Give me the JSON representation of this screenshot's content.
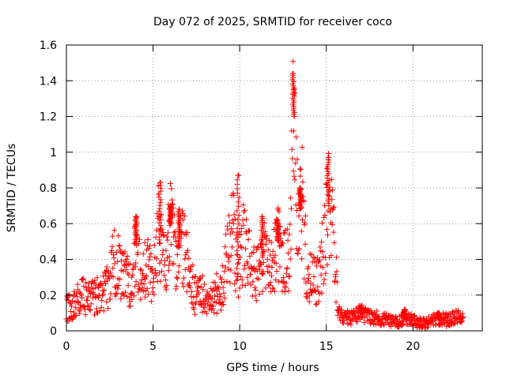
{
  "chart_data": {
    "type": "scatter",
    "title": "Day 072 of 2025, SRMTID for receiver coco",
    "xlabel": "GPS time / hours",
    "ylabel": "SRMTID / TECUs",
    "xlim": [
      0,
      24
    ],
    "ylim": [
      0,
      1.6
    ],
    "grid": true,
    "marker": "+",
    "color": "#ff0000",
    "xticks": [
      0,
      5,
      10,
      15,
      20
    ],
    "xtick_labels": [
      "0",
      "5",
      "10",
      "15",
      "20"
    ],
    "yticks": [
      0,
      0.2,
      0.4,
      0.6,
      0.8,
      1.0,
      1.2,
      1.4,
      1.6
    ],
    "ytick_labels": [
      "0",
      "0.2",
      "0.4",
      "0.6",
      "0.8",
      "1",
      "1.2",
      "1.4",
      "1.6"
    ],
    "envelope_x": [
      0,
      0.3,
      0.6,
      1.0,
      1.5,
      2.0,
      2.5,
      2.7,
      3.0,
      3.5,
      3.8,
      4.0,
      4.3,
      4.7,
      5.0,
      5.3,
      5.7,
      6.0,
      6.3,
      6.6,
      7.0,
      7.4,
      7.8,
      8.2,
      8.6,
      9.0,
      9.3,
      9.6,
      9.9,
      10.2,
      10.6,
      11.0,
      11.4,
      11.8,
      12.2,
      12.6,
      12.9,
      13.1,
      13.3,
      13.6,
      13.9,
      14.2,
      14.6,
      15.0,
      15.2,
      15.4,
      15.7,
      16.0,
      16.5,
      17.0,
      17.5,
      18.0,
      18.5,
      19.0,
      19.5,
      20.0,
      20.5,
      21.0,
      21.5,
      22.0,
      22.5,
      22.9
    ],
    "envelope_y": [
      0.14,
      0.12,
      0.17,
      0.2,
      0.18,
      0.22,
      0.25,
      0.38,
      0.36,
      0.3,
      0.25,
      0.48,
      0.3,
      0.35,
      0.3,
      0.55,
      0.32,
      0.6,
      0.4,
      0.5,
      0.38,
      0.2,
      0.22,
      0.15,
      0.2,
      0.25,
      0.45,
      0.55,
      0.35,
      0.48,
      0.4,
      0.3,
      0.45,
      0.35,
      0.5,
      0.38,
      0.4,
      1.2,
      0.65,
      0.7,
      0.3,
      0.28,
      0.3,
      0.6,
      0.8,
      0.55,
      0.09,
      0.08,
      0.07,
      0.1,
      0.08,
      0.07,
      0.06,
      0.05,
      0.07,
      0.06,
      0.04,
      0.05,
      0.07,
      0.06,
      0.08,
      0.07
    ],
    "spikes": [
      {
        "x": 4.0,
        "y": 0.64
      },
      {
        "x": 5.4,
        "y": 0.83
      },
      {
        "x": 6.0,
        "y": 0.7
      },
      {
        "x": 6.5,
        "y": 0.68
      },
      {
        "x": 9.9,
        "y": 0.87
      },
      {
        "x": 11.3,
        "y": 0.64
      },
      {
        "x": 12.2,
        "y": 0.62
      },
      {
        "x": 13.1,
        "y": 1.44
      },
      {
        "x": 13.5,
        "y": 0.8
      },
      {
        "x": 15.1,
        "y": 0.97
      },
      {
        "x": 17.0,
        "y": 0.13
      },
      {
        "x": 19.5,
        "y": 0.12
      },
      {
        "x": 21.5,
        "y": 0.1
      }
    ]
  }
}
